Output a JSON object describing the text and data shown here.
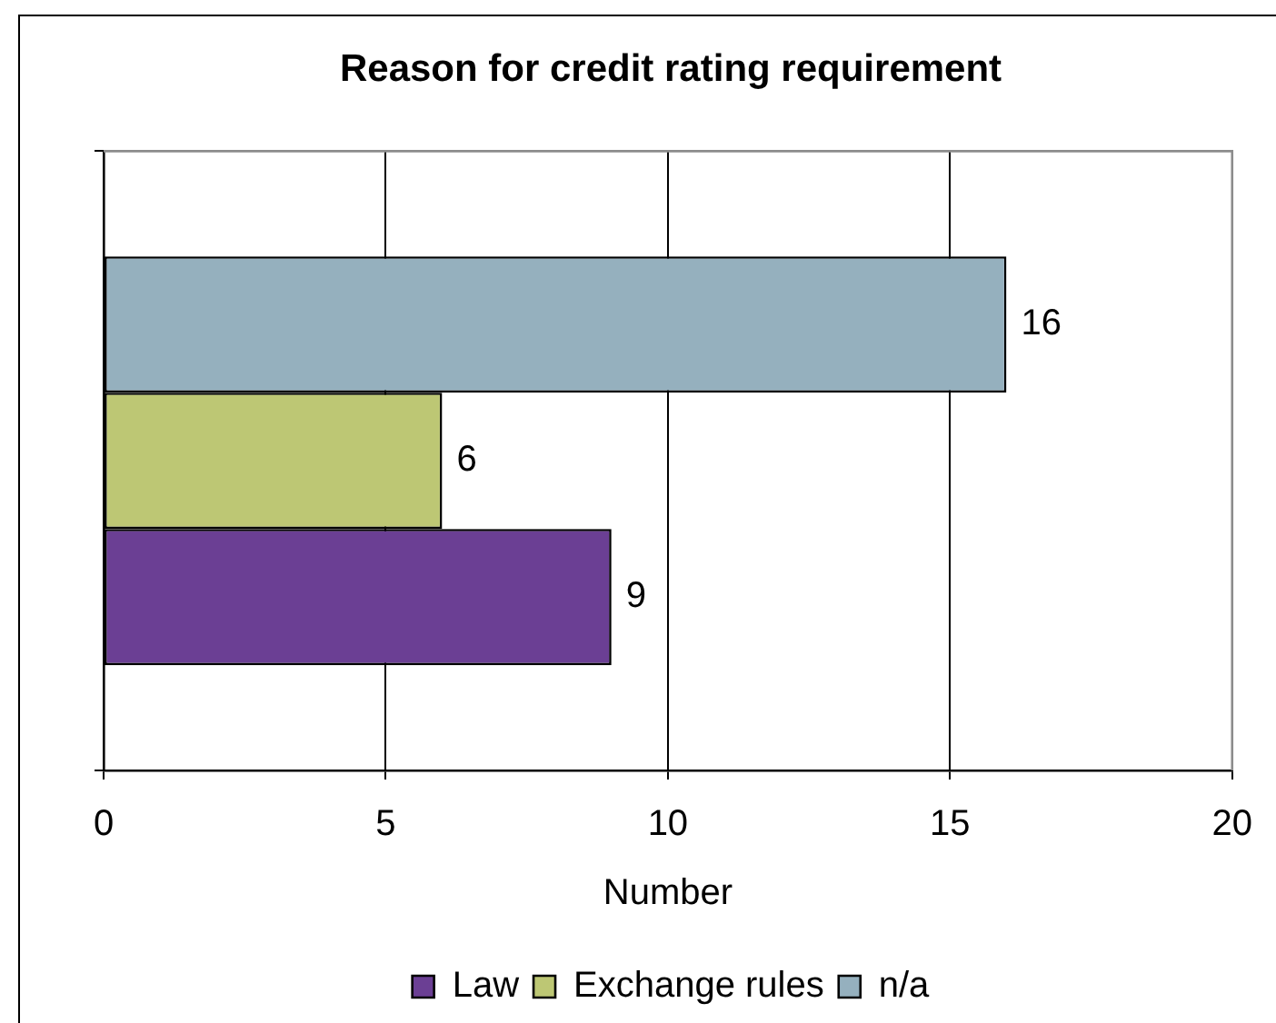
{
  "chart_data": {
    "type": "bar",
    "title": "Reason for credit rating requirement",
    "xlabel": "Number",
    "orientation": "horizontal",
    "categories": [
      null
    ],
    "series": [
      {
        "name": "Law",
        "color": "#6b3f94",
        "values": [
          9
        ]
      },
      {
        "name": "Exchange rules",
        "color": "#bdc774",
        "values": [
          6
        ]
      },
      {
        "name": "n/a",
        "color": "#95b0be",
        "values": [
          16
        ]
      }
    ],
    "xlim": [
      0,
      20
    ],
    "xticks": [
      0,
      5,
      10,
      15,
      20
    ],
    "grid": "x",
    "legend": "bottom",
    "data_labels": true
  }
}
